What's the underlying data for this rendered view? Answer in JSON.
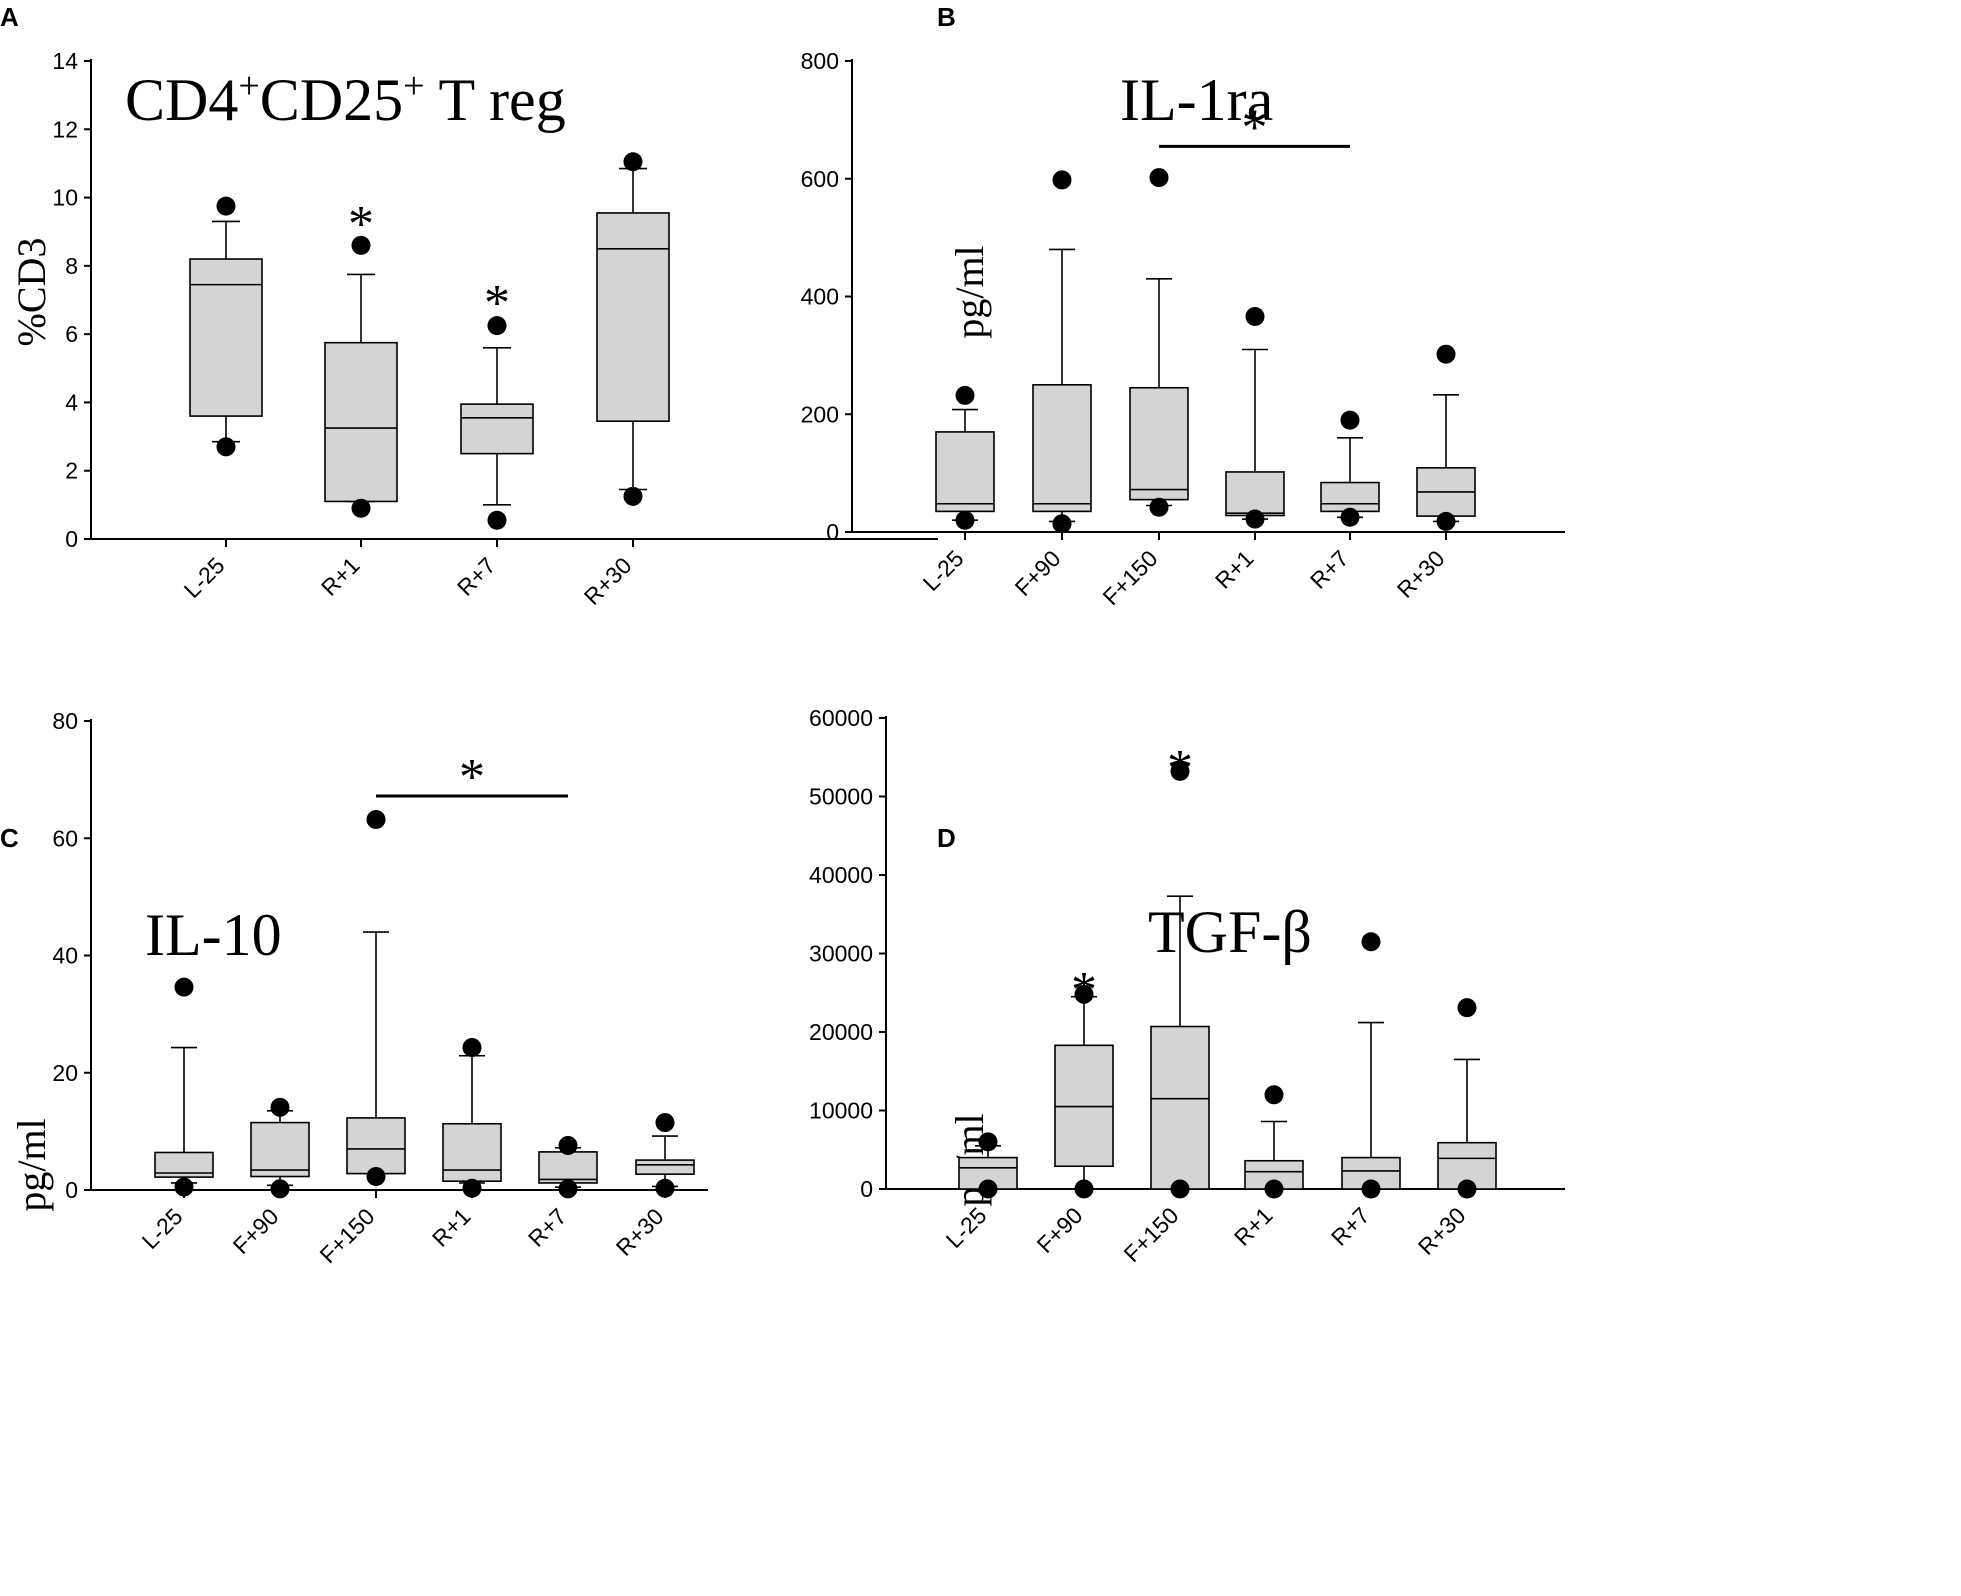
{
  "chart_data": [
    {
      "panel": "A",
      "type": "box",
      "title": "CD4",
      "title_sup1": "+",
      "title_mid": "CD25",
      "title_sup2": "+",
      "title_end": " T reg",
      "ylabel": "%CD3",
      "ylim": [
        0,
        14
      ],
      "yticks": [
        0,
        2,
        4,
        6,
        8,
        10,
        12,
        14
      ],
      "categories": [
        "L-25",
        "R+1",
        "R+7",
        "R+30"
      ],
      "boxes": [
        {
          "whisker_low": 2.85,
          "q1": 3.6,
          "median": 7.45,
          "q3": 8.2,
          "whisker_high": 9.3,
          "outliers": [
            9.75,
            2.7
          ]
        },
        {
          "whisker_low": 1.1,
          "q1": 1.1,
          "median": 3.25,
          "q3": 5.75,
          "whisker_high": 7.75,
          "outliers": [
            8.6,
            0.9
          ]
        },
        {
          "whisker_low": 1.0,
          "q1": 2.5,
          "median": 3.55,
          "q3": 3.95,
          "whisker_high": 5.6,
          "outliers": [
            6.25,
            0.55
          ]
        },
        {
          "whisker_low": 1.45,
          "q1": 3.45,
          "median": 8.5,
          "q3": 9.55,
          "whisker_high": 10.85,
          "outliers": [
            11.05,
            1.25
          ]
        }
      ],
      "asterisks": [
        {
          "category": "R+1",
          "label": "*",
          "y": 9.6
        },
        {
          "category": "R+7",
          "label": "*",
          "y": 7.3
        }
      ],
      "sig_bars": []
    },
    {
      "panel": "B",
      "type": "box",
      "title": "IL-1ra",
      "ylabel": "pg/ml",
      "ylim": [
        0,
        800
      ],
      "yticks": [
        0,
        200,
        400,
        600,
        800
      ],
      "categories": [
        "L-25",
        "F+90",
        "F+150",
        "R+1",
        "R+7",
        "R+30"
      ],
      "boxes": [
        {
          "whisker_low": 20,
          "q1": 35,
          "median": 48,
          "q3": 170,
          "whisker_high": 208,
          "outliers": [
            232,
            20
          ]
        },
        {
          "whisker_low": 18,
          "q1": 35,
          "median": 48,
          "q3": 250,
          "whisker_high": 480,
          "outliers": [
            598,
            14
          ]
        },
        {
          "whisker_low": 45,
          "q1": 55,
          "median": 72,
          "q3": 245,
          "whisker_high": 430,
          "outliers": [
            602,
            42
          ]
        },
        {
          "whisker_low": 22,
          "q1": 28,
          "median": 32,
          "q3": 102,
          "whisker_high": 310,
          "outliers": [
            366,
            22
          ]
        },
        {
          "whisker_low": 25,
          "q1": 35,
          "median": 48,
          "q3": 84,
          "whisker_high": 160,
          "outliers": [
            190,
            25
          ]
        },
        {
          "whisker_low": 18,
          "q1": 27,
          "median": 68,
          "q3": 109,
          "whisker_high": 233,
          "outliers": [
            302,
            18
          ]
        }
      ],
      "asterisks": [],
      "sig_bars": [
        {
          "from": "F+150",
          "to": "R+7",
          "y": 655,
          "label": "*"
        }
      ]
    },
    {
      "panel": "C",
      "type": "box",
      "title": "IL-10",
      "ylabel": "pg/ml",
      "ylim": [
        0,
        80
      ],
      "yticks": [
        0,
        20,
        40,
        60,
        80
      ],
      "categories": [
        "L-25",
        "F+90",
        "F+150",
        "R+1",
        "R+7",
        "R+30"
      ],
      "boxes": [
        {
          "whisker_low": 1.2,
          "q1": 2.2,
          "median": 2.9,
          "q3": 6.4,
          "whisker_high": 24.3,
          "outliers": [
            34.6,
            0.5
          ]
        },
        {
          "whisker_low": 0.8,
          "q1": 2.3,
          "median": 3.4,
          "q3": 11.5,
          "whisker_high": 13.5,
          "outliers": [
            14.1,
            0.2
          ]
        },
        {
          "whisker_low": 2.8,
          "q1": 2.8,
          "median": 7.0,
          "q3": 12.3,
          "whisker_high": 44.0,
          "outliers": [
            63.2,
            2.3
          ]
        },
        {
          "whisker_low": 1.2,
          "q1": 1.5,
          "median": 3.4,
          "q3": 11.3,
          "whisker_high": 22.9,
          "outliers": [
            24.3,
            0.3
          ]
        },
        {
          "whisker_low": 0.5,
          "q1": 1.2,
          "median": 1.8,
          "q3": 6.5,
          "whisker_high": 7.2,
          "outliers": [
            7.6,
            0.2
          ]
        },
        {
          "whisker_low": 0.6,
          "q1": 2.7,
          "median": 4.3,
          "q3": 5.1,
          "whisker_high": 9.2,
          "outliers": [
            11.5,
            0.3
          ]
        }
      ],
      "asterisks": [],
      "sig_bars": [
        {
          "from": "F+150",
          "to": "R+7",
          "y": 67.2,
          "label": "*"
        }
      ]
    },
    {
      "panel": "D",
      "type": "box",
      "title": "TGF-β",
      "ylabel": "pg/ml",
      "ylim": [
        0,
        60000
      ],
      "yticks": [
        0,
        10000,
        20000,
        30000,
        40000,
        50000,
        60000
      ],
      "categories": [
        "L-25",
        "F+90",
        "F+150",
        "R+1",
        "R+7",
        "R+30"
      ],
      "boxes": [
        {
          "whisker_low": 0,
          "q1": 0,
          "median": 2700,
          "q3": 4000,
          "whisker_high": 5500,
          "outliers": [
            6000,
            0
          ]
        },
        {
          "whisker_low": 0,
          "q1": 2900,
          "median": 10500,
          "q3": 18300,
          "whisker_high": 24500,
          "outliers": [
            24800,
            0
          ]
        },
        {
          "whisker_low": 0,
          "q1": 0,
          "median": 11500,
          "q3": 20700,
          "whisker_high": 37300,
          "outliers": [
            53200,
            0
          ]
        },
        {
          "whisker_low": 0,
          "q1": 0,
          "median": 2200,
          "q3": 3600,
          "whisker_high": 8600,
          "outliers": [
            12000,
            0
          ]
        },
        {
          "whisker_low": 0,
          "q1": 0,
          "median": 2300,
          "q3": 4000,
          "whisker_high": 21200,
          "outliers": [
            31500,
            0
          ]
        },
        {
          "whisker_low": 0,
          "q1": 0,
          "median": 3900,
          "q3": 5900,
          "whisker_high": 16500,
          "outliers": [
            23100,
            0
          ]
        }
      ],
      "asterisks": [
        {
          "category": "F+90",
          "label": "*",
          "y": 27000
        },
        {
          "category": "F+150",
          "label": "*",
          "y": 55300
        }
      ],
      "sig_bars": []
    }
  ]
}
